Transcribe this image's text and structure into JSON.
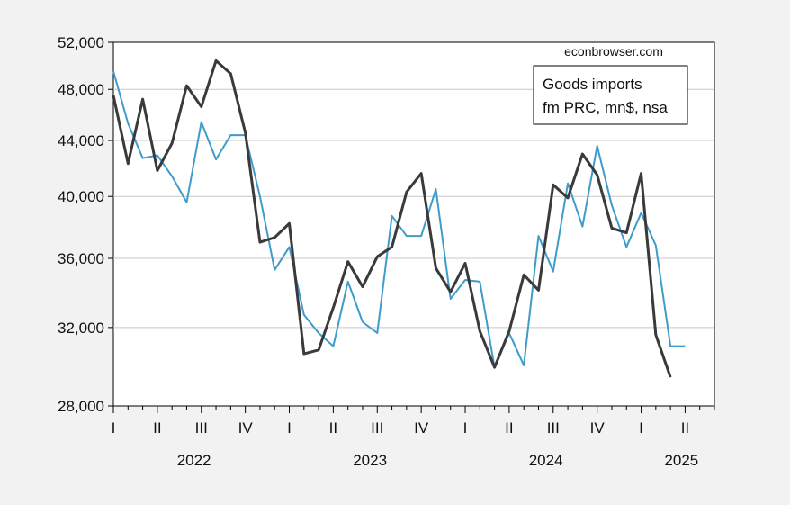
{
  "chart_data": {
    "type": "line",
    "title": "",
    "xlabel": "",
    "ylabel": "",
    "yscale": "log",
    "ylim": [
      28000,
      52000
    ],
    "yticks": [
      28000,
      32000,
      36000,
      40000,
      44000,
      48000,
      52000
    ],
    "ytick_labels": [
      "28,000",
      "32,000",
      "36,000",
      "40,000",
      "44,000",
      "48,000",
      "52,000"
    ],
    "xlim": [
      "2022-01",
      "2025-06"
    ],
    "quarter_labels": [
      "I",
      "II",
      "III",
      "IV",
      "I",
      "II",
      "III",
      "IV",
      "I",
      "II",
      "III",
      "IV",
      "I",
      "II"
    ],
    "year_labels": [
      "2022",
      "2023",
      "2024",
      "2025"
    ],
    "grid": true,
    "source_note": "econbrowser.com",
    "legend_text": [
      "Goods imports",
      "fm PRC, mn$, nsa"
    ],
    "legend_position": "top-right",
    "x": [
      "2022-01",
      "2022-02",
      "2022-03",
      "2022-04",
      "2022-05",
      "2022-06",
      "2022-07",
      "2022-08",
      "2022-09",
      "2022-10",
      "2022-11",
      "2022-12",
      "2023-01",
      "2023-02",
      "2023-03",
      "2023-04",
      "2023-05",
      "2023-06",
      "2023-07",
      "2023-08",
      "2023-09",
      "2023-10",
      "2023-11",
      "2023-12",
      "2024-01",
      "2024-02",
      "2024-03",
      "2024-04",
      "2024-05",
      "2024-06",
      "2024-07",
      "2024-08",
      "2024-09",
      "2024-10",
      "2024-11",
      "2024-12",
      "2025-01",
      "2025-02",
      "2025-03",
      "2025-04"
    ],
    "series": [
      {
        "color": "#3a3a3a",
        "line_width": 3,
        "values": [
          47500,
          42300,
          47200,
          41800,
          43800,
          48300,
          46600,
          50400,
          49300,
          44600,
          37000,
          37300,
          38200,
          30600,
          30800,
          33100,
          35800,
          34300,
          36100,
          36700,
          40300,
          41600,
          35400,
          34000,
          35700,
          31800,
          29900,
          31800,
          35000,
          34100,
          40800,
          39900,
          43000,
          41500,
          37900,
          37600,
          41600,
          31600,
          29400,
          null
        ]
      },
      {
        "color": "#3d9ccb",
        "line_width": 2,
        "values": [
          49500,
          45300,
          42700,
          42900,
          41400,
          39600,
          45400,
          42600,
          44400,
          44400,
          40000,
          35300,
          36700,
          32700,
          31700,
          31000,
          34600,
          32300,
          31700,
          38700,
          37400,
          37400,
          40500,
          33600,
          34700,
          34600,
          29900,
          31700,
          30000,
          37400,
          35200,
          40900,
          38000,
          43600,
          39400,
          36700,
          38900,
          36800,
          31000,
          31000
        ]
      }
    ]
  }
}
